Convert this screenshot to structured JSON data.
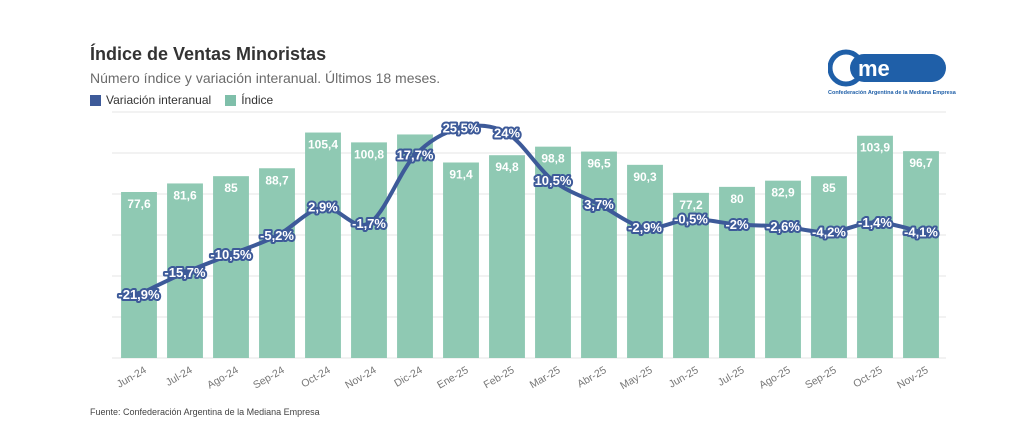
{
  "header": {
    "title": "Índice de Ventas Minoristas",
    "subtitle": "Número índice y variación interanual. Últimos 18 meses."
  },
  "legend": [
    {
      "label": "Variación interanual",
      "color": "#3d5a99"
    },
    {
      "label": "Índice",
      "color": "#7fbfaa"
    }
  ],
  "logo": {
    "text": "Confederación Argentina de la Mediana Empresa",
    "color": "#1f5fa8"
  },
  "source": "Fuente: Confederación Argentina de la Mediana Empresa",
  "chart_data": {
    "type": "bar",
    "title": "Índice de Ventas Minoristas",
    "categories": [
      "Jun-24",
      "Jul-24",
      "Ago-24",
      "Sep-24",
      "Oct-24",
      "Nov-24",
      "Dic-24",
      "Ene-25",
      "Feb-25",
      "Mar-25",
      "Abr-25",
      "May-25",
      "Jun-25",
      "Jul-25",
      "Ago-25",
      "Sep-25",
      "Oct-25",
      "Nov-25"
    ],
    "series": [
      {
        "name": "Índice",
        "type": "bar",
        "color": "#8fc9b3",
        "values": [
          77.6,
          81.6,
          85,
          88.7,
          105.4,
          100.8,
          null,
          91.4,
          94.8,
          98.8,
          96.5,
          90.3,
          77.2,
          80,
          82.9,
          85,
          103.9,
          96.7
        ],
        "labels": [
          "77,6",
          "81,6",
          "85",
          "88,7",
          "105,4",
          "100,8",
          "",
          "91,4",
          "94,8",
          "98,8",
          "96,5",
          "90,3",
          "77,2",
          "80",
          "82,9",
          "85",
          "103,9",
          "96,7"
        ]
      },
      {
        "name": "Variación interanual",
        "type": "line",
        "color": "#3d5a99",
        "values": [
          -21.9,
          -15.7,
          -10.5,
          -5.2,
          2.9,
          -1.7,
          17.7,
          25.5,
          24,
          10.5,
          3.7,
          -2.9,
          -0.5,
          -2,
          -2.6,
          -4.2,
          -1.4,
          -4.1
        ],
        "labels": [
          "-21,9%",
          "-15,7%",
          "-10,5%",
          "-5,2%",
          "2,9%",
          "-1,7%",
          "17,7%",
          "25,5%",
          "24%",
          "10,5%",
          "3,7%",
          "-2,9%",
          "-0,5%",
          "-2%",
          "-2,6%",
          "-4,2%",
          "-1,4%",
          "-4,1%"
        ]
      }
    ],
    "bar_axis": {
      "min": 0,
      "max": 115
    },
    "line_axis": {
      "min": -40,
      "max": 30
    },
    "xlabel": "",
    "ylabel": "",
    "grid": true,
    "legend_position": "top-left"
  }
}
